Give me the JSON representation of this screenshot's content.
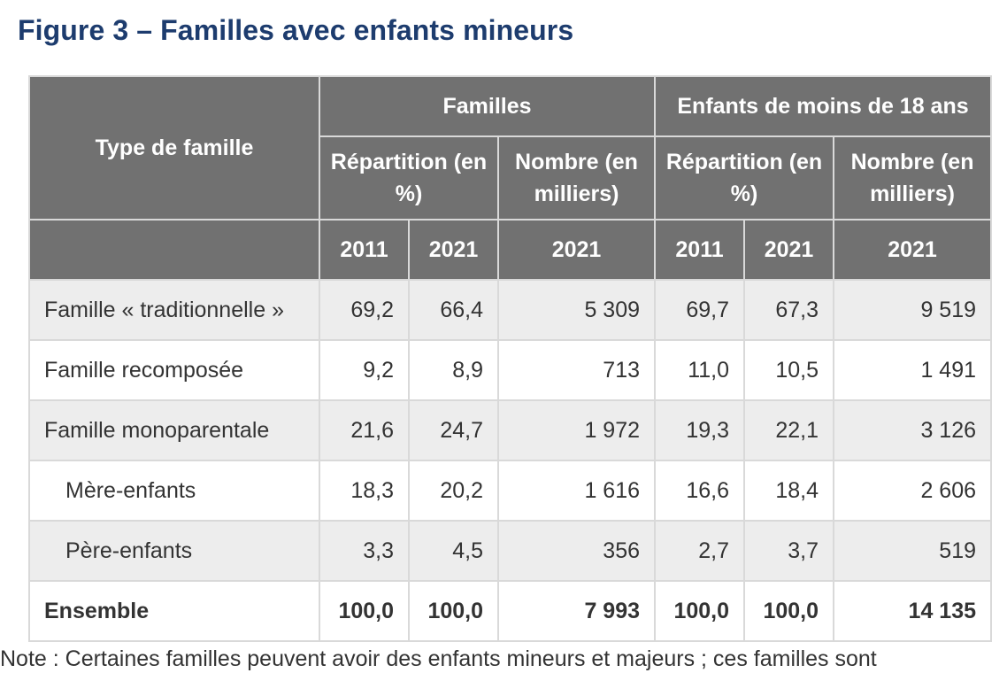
{
  "title": "Figure 3 – Familles avec enfants mineurs",
  "table": {
    "header": {
      "type_label": "Type de famille",
      "group_familles": "Familles",
      "group_enfants": "Enfants de moins de 18 ans",
      "repartition": "Répartition (en %)",
      "nombre": "Nombre (en milliers)",
      "years": [
        "2011",
        "2021",
        "2021",
        "2011",
        "2021",
        "2021"
      ]
    },
    "rows": [
      {
        "label": "Famille « traditionnelle »",
        "values": [
          "69,2",
          "66,4",
          "5 309",
          "69,7",
          "67,3",
          "9 519"
        ]
      },
      {
        "label": "Famille recomposée",
        "values": [
          "9,2",
          "8,9",
          "713",
          "11,0",
          "10,5",
          "1 491"
        ]
      },
      {
        "label": "Famille monoparentale",
        "values": [
          "21,6",
          "24,7",
          "1 972",
          "19,3",
          "22,1",
          "3 126"
        ]
      },
      {
        "label": "Mère-enfants",
        "values": [
          "18,3",
          "20,2",
          "1 616",
          "16,6",
          "18,4",
          "2 606"
        ]
      },
      {
        "label": "Père-enfants",
        "values": [
          "3,3",
          "4,5",
          "356",
          "2,7",
          "3,7",
          "519"
        ]
      },
      {
        "label": "Ensemble",
        "values": [
          "100,0",
          "100,0",
          "7 993",
          "100,0",
          "100,0",
          "14 135"
        ]
      }
    ]
  },
  "note": "Note : Certaines familles peuvent avoir des enfants mineurs et majeurs ; ces familles sont"
}
